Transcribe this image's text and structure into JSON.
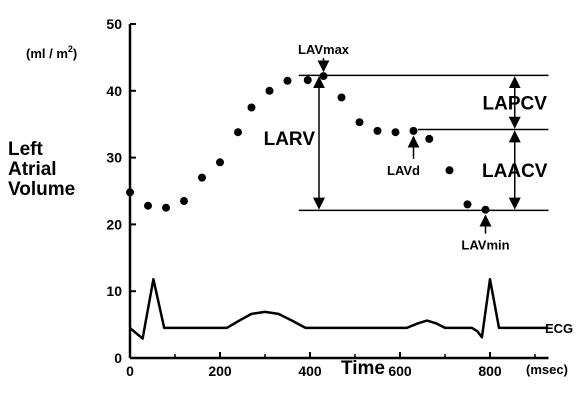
{
  "chart_data": {
    "type": "scatter",
    "title": "",
    "ylabel_lines": [
      "Left",
      "Atrial",
      "Volume"
    ],
    "yunit": "(ml / m",
    "yunit_sup": "2",
    "yunit_end": ")",
    "xlabel": "Time",
    "xunit": "(msec)",
    "xlim": [
      0,
      930
    ],
    "ylim": [
      0,
      50
    ],
    "xticks": [
      0,
      200,
      400,
      600,
      800
    ],
    "yticks": [
      0,
      10,
      20,
      30,
      40,
      50
    ],
    "grid": false,
    "series": [
      {
        "points": [
          {
            "x": 0,
            "y": 24.8
          },
          {
            "x": 40,
            "y": 22.8
          },
          {
            "x": 80,
            "y": 22.5
          },
          {
            "x": 120,
            "y": 23.5
          },
          {
            "x": 160,
            "y": 27.0
          },
          {
            "x": 200,
            "y": 29.3
          },
          {
            "x": 240,
            "y": 33.8
          },
          {
            "x": 270,
            "y": 37.5
          },
          {
            "x": 310,
            "y": 40.0
          },
          {
            "x": 350,
            "y": 41.5
          },
          {
            "x": 395,
            "y": 41.6
          },
          {
            "x": 430,
            "y": 42.2
          },
          {
            "x": 470,
            "y": 39.0
          },
          {
            "x": 510,
            "y": 35.3
          },
          {
            "x": 550,
            "y": 34.0
          },
          {
            "x": 590,
            "y": 33.8
          },
          {
            "x": 630,
            "y": 34.0
          },
          {
            "x": 665,
            "y": 32.8
          },
          {
            "x": 710,
            "y": 28.1
          },
          {
            "x": 750,
            "y": 23.0
          },
          {
            "x": 790,
            "y": 22.2
          }
        ]
      }
    ],
    "ecg": {
      "label": "ECG",
      "points": [
        {
          "x": 0,
          "y": 4.5
        },
        {
          "x": 12,
          "y": 3.8
        },
        {
          "x": 28,
          "y": 2.9
        },
        {
          "x": 52,
          "y": 11.8
        },
        {
          "x": 76,
          "y": 4.5
        },
        {
          "x": 215,
          "y": 4.5
        },
        {
          "x": 240,
          "y": 5.5
        },
        {
          "x": 270,
          "y": 6.6
        },
        {
          "x": 300,
          "y": 6.9
        },
        {
          "x": 330,
          "y": 6.6
        },
        {
          "x": 360,
          "y": 5.6
        },
        {
          "x": 390,
          "y": 4.5
        },
        {
          "x": 615,
          "y": 4.5
        },
        {
          "x": 640,
          "y": 5.2
        },
        {
          "x": 660,
          "y": 5.6
        },
        {
          "x": 680,
          "y": 5.2
        },
        {
          "x": 700,
          "y": 4.5
        },
        {
          "x": 760,
          "y": 4.5
        },
        {
          "x": 772,
          "y": 4.0
        },
        {
          "x": 782,
          "y": 3.1
        },
        {
          "x": 800,
          "y": 11.8
        },
        {
          "x": 820,
          "y": 4.5
        },
        {
          "x": 930,
          "y": 4.5
        }
      ]
    },
    "reference_lines": [
      {
        "y": 42.3,
        "x_from": 375,
        "x_to": 930
      },
      {
        "y": 34.2,
        "x_from": 640,
        "x_to": 930
      },
      {
        "y": 22.1,
        "x_from": 375,
        "x_to": 930
      }
    ],
    "annotations": [
      {
        "text": "LAVmax",
        "x": 430,
        "y": 42.2
      },
      {
        "text": "LAVd",
        "x": 630,
        "y": 34.0
      },
      {
        "text": "LAVmin",
        "x": 790,
        "y": 22.2
      },
      {
        "text": "LARV",
        "y_from": 42.3,
        "y_to": 22.1,
        "x": 420
      },
      {
        "text": "LAPCV",
        "y_from": 42.3,
        "y_to": 34.2,
        "x": 855
      },
      {
        "text": "LAACV",
        "y_from": 34.2,
        "y_to": 22.1,
        "x": 855
      }
    ]
  }
}
